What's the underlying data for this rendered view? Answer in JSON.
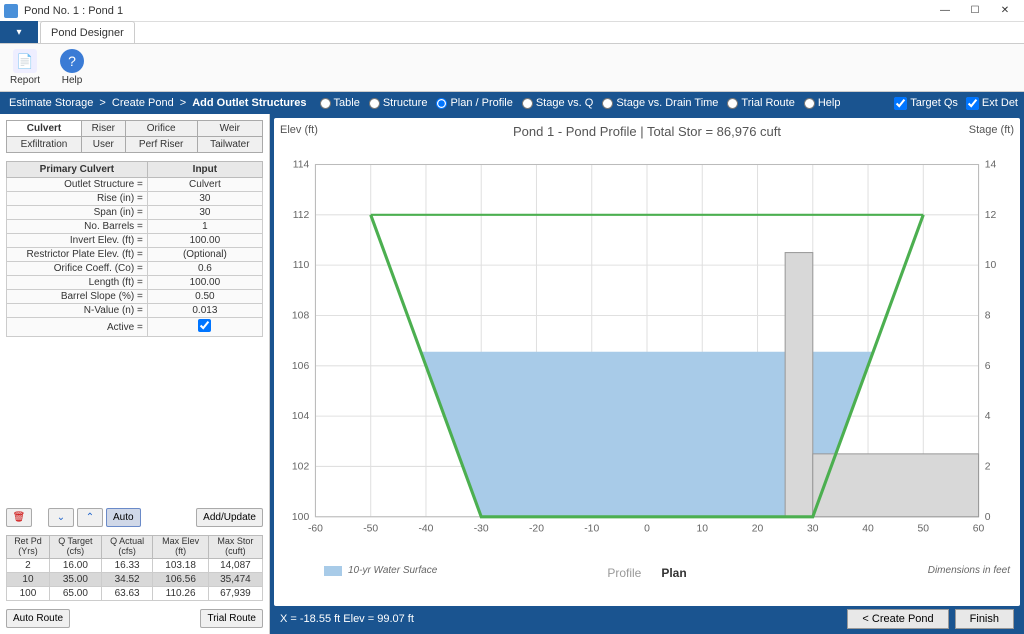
{
  "window": {
    "title": "Pond No. 1 : Pond 1"
  },
  "ribbonTab": "Pond Designer",
  "ribbon": {
    "report": "Report",
    "help": "Help"
  },
  "breadcrumb": [
    "Estimate Storage",
    "Create Pond",
    "Add Outlet Structures"
  ],
  "views": [
    "Table",
    "Structure",
    "Plan / Profile",
    "Stage vs. Q",
    "Stage vs. Drain Time",
    "Trial Route",
    "Help"
  ],
  "viewSelected": 2,
  "checks": {
    "targetQs": "Target Qs",
    "extDet": "Ext Det"
  },
  "structTabs": {
    "row1": [
      "Culvert",
      "Riser",
      "Orifice",
      "Weir"
    ],
    "row2": [
      "Exfiltration",
      "User",
      "Perf Riser",
      "Tailwater"
    ],
    "active": "Culvert"
  },
  "paramHeader": {
    "left": "Primary Culvert",
    "right": "Input"
  },
  "params": [
    {
      "l": "Outlet Structure =",
      "v": "Culvert"
    },
    {
      "l": "Rise (in) =",
      "v": "30"
    },
    {
      "l": "Span (in) =",
      "v": "30"
    },
    {
      "l": "No. Barrels =",
      "v": "1"
    },
    {
      "l": "Invert Elev. (ft) =",
      "v": "100.00"
    },
    {
      "l": "Restrictor Plate Elev. (ft) =",
      "v": "(Optional)"
    },
    {
      "l": "Orifice Coeff. (Co) =",
      "v": "0.6"
    },
    {
      "l": "Length (ft) =",
      "v": "100.00"
    },
    {
      "l": "Barrel Slope (%) =",
      "v": "0.50"
    },
    {
      "l": "N-Value (n) =",
      "v": "0.013"
    },
    {
      "l": "Active =",
      "v": "__check__"
    }
  ],
  "btns": {
    "auto": "Auto",
    "addUpdate": "Add/Update",
    "autoRoute": "Auto Route",
    "trialRoute": "Trial Route",
    "createPond": "< Create Pond",
    "finish": "Finish"
  },
  "resHeaders": [
    [
      "Ret Pd",
      "(Yrs)"
    ],
    [
      "Q Target",
      "(cfs)"
    ],
    [
      "Q Actual",
      "(cfs)"
    ],
    [
      "Max Elev",
      "(ft)"
    ],
    [
      "Max Stor",
      "(cuft)"
    ]
  ],
  "resRows": [
    [
      "2",
      "16.00",
      "16.33",
      "103.18",
      "14,087"
    ],
    [
      "10",
      "35.00",
      "34.52",
      "106.56",
      "35,474"
    ],
    [
      "100",
      "65.00",
      "63.63",
      "110.26",
      "67,939"
    ]
  ],
  "resSelected": 1,
  "chart": {
    "title": "Pond 1 - Pond Profile | Total Stor = 86,976 cuft",
    "leftAxis": "Elev (ft)",
    "rightAxis": "Stage (ft)",
    "xlim": [
      -60,
      60
    ],
    "ylim": [
      100,
      114
    ],
    "rightYlim": [
      0,
      14
    ],
    "xtick": 10,
    "ytick": 2,
    "colors": {
      "pondLine": "#4caf50",
      "water": "#a8cbe8",
      "riser": "#d8d8d8",
      "grid": "#e0e0e0",
      "border": "#bbb"
    },
    "pondShape": [
      [
        -50,
        112
      ],
      [
        -30,
        100
      ],
      [
        30,
        100
      ],
      [
        50,
        112
      ]
    ],
    "waterLevel": 106.56,
    "riserX": 25,
    "riserW": 5,
    "riserTop": 110.5,
    "pipeY1": 100,
    "pipeY2": 102.5,
    "pipeX1": 30,
    "pipeX2": 60,
    "legend": "10-yr Water Surface",
    "viewTabs": {
      "profile": "Profile",
      "plan": "Plan"
    },
    "dims": "Dimensions in feet"
  },
  "status": {
    "coords": "X = -18.55 ft    Elev = 99.07 ft"
  }
}
